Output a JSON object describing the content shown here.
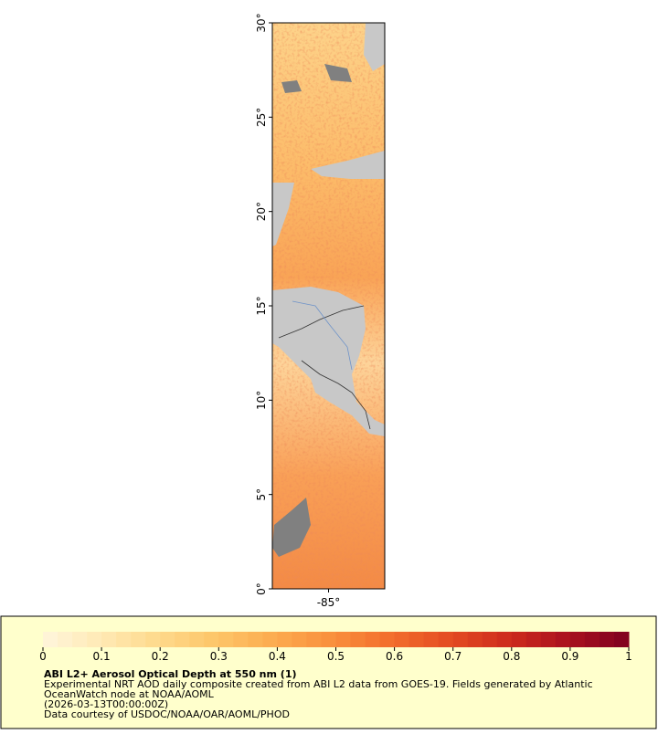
{
  "map": {
    "xlim": [
      -88,
      -82
    ],
    "ylim": [
      0,
      30
    ],
    "xticks": [
      {
        "value": -85,
        "label": "-85°"
      }
    ],
    "yticks": [
      {
        "value": 0,
        "label": "0°"
      },
      {
        "value": 5,
        "label": "5°"
      },
      {
        "value": 10,
        "label": "10°"
      },
      {
        "value": 15,
        "label": "15°"
      },
      {
        "value": 20,
        "label": "20°"
      },
      {
        "value": 25,
        "label": "25°"
      },
      {
        "value": 30,
        "label": "30°"
      }
    ]
  },
  "legend": {
    "title": "ABI L2+ Aerosol Optical Depth at 550 nm (1)",
    "lines": [
      "Experimental NRT AOD daily composite created from ABI L2 data from GOES-19. Fields generated by Atlantic",
      "OceanWatch node at NOAA/AOML",
      "(2026-03-13T00:00:00Z)",
      "Data courtesy of USDOC/NOAA/OAR/AOML/PHOD"
    ],
    "colorbar": {
      "range": [
        0,
        1
      ],
      "ticks": [
        0,
        0.1,
        0.2,
        0.3,
        0.4,
        0.5,
        0.6,
        0.7,
        0.8,
        0.9,
        1
      ],
      "colors": [
        "#fff5dc",
        "#ffe9b4",
        "#fed98a",
        "#fdc467",
        "#fcaa4e",
        "#f98d3c",
        "#f26c2c",
        "#e34a22",
        "#cc2a1d",
        "#a8101f",
        "#7f0020"
      ]
    }
  }
}
